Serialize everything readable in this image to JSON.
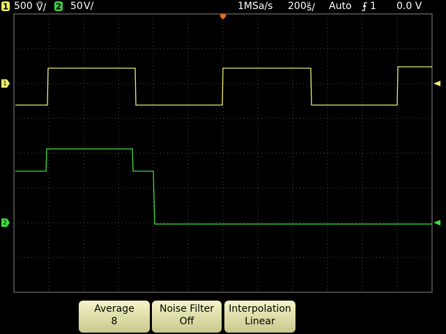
{
  "status_bar": {
    "channel_1": {
      "label": "1",
      "value": "500",
      "unit_prefix": "m",
      "unit": "V/"
    },
    "channel_2": {
      "label": "2",
      "value": "50",
      "unit": "V/"
    },
    "sample_rate": "1MSa/s",
    "timebase": {
      "value": "200",
      "unit_prefix": "µ",
      "unit": "s/"
    },
    "trigger_mode": "Auto",
    "trigger_source": "1",
    "trigger_level": "0.0 V"
  },
  "markers": {
    "channel_1": "1",
    "channel_2": "2"
  },
  "softkeys": [
    {
      "title": "Average",
      "value": "8"
    },
    {
      "title": "Noise Filter",
      "value": "Off"
    },
    {
      "title": "Interpolation",
      "value": "Linear"
    }
  ]
}
